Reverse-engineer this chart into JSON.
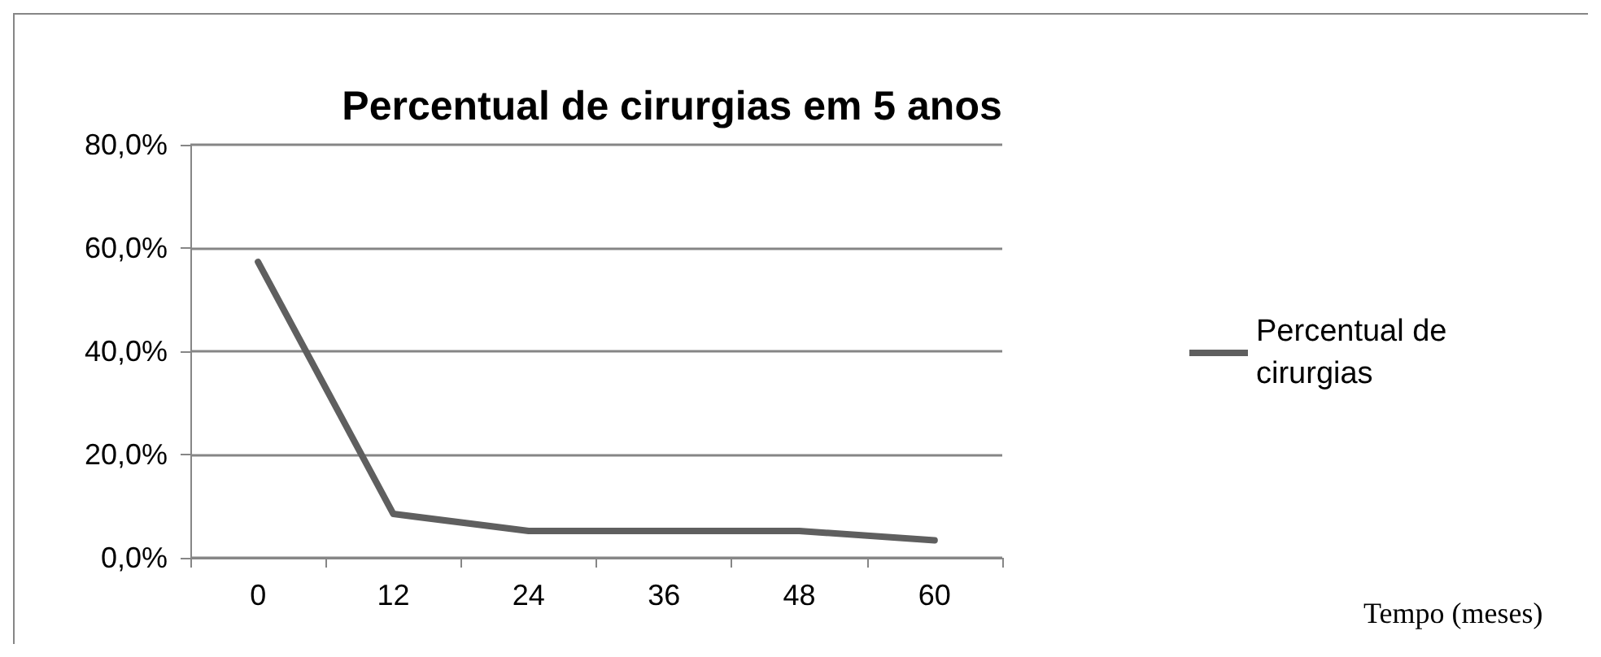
{
  "chart_data": {
    "type": "line",
    "title": "Percentual de cirurgias em 5 anos",
    "annotations": [
      "Tempo (meses)"
    ],
    "categories": [
      "0",
      "12",
      "24",
      "36",
      "48",
      "60"
    ],
    "series": [
      {
        "name": "Percentual de cirurgias",
        "color": "#5f5f5f",
        "values": [
          57.3,
          8.5,
          5.2,
          5.2,
          5.2,
          3.4
        ]
      }
    ],
    "ylim": [
      0,
      80
    ],
    "yticks": [
      {
        "value": 0,
        "label": "0,0%"
      },
      {
        "value": 20,
        "label": "20,0%"
      },
      {
        "value": 40,
        "label": "40,0%"
      },
      {
        "value": 60,
        "label": "60,0%"
      },
      {
        "value": 80,
        "label": "80,0%"
      }
    ],
    "grid": "y",
    "legend": "right",
    "marker": "none",
    "line_style": "solid"
  }
}
